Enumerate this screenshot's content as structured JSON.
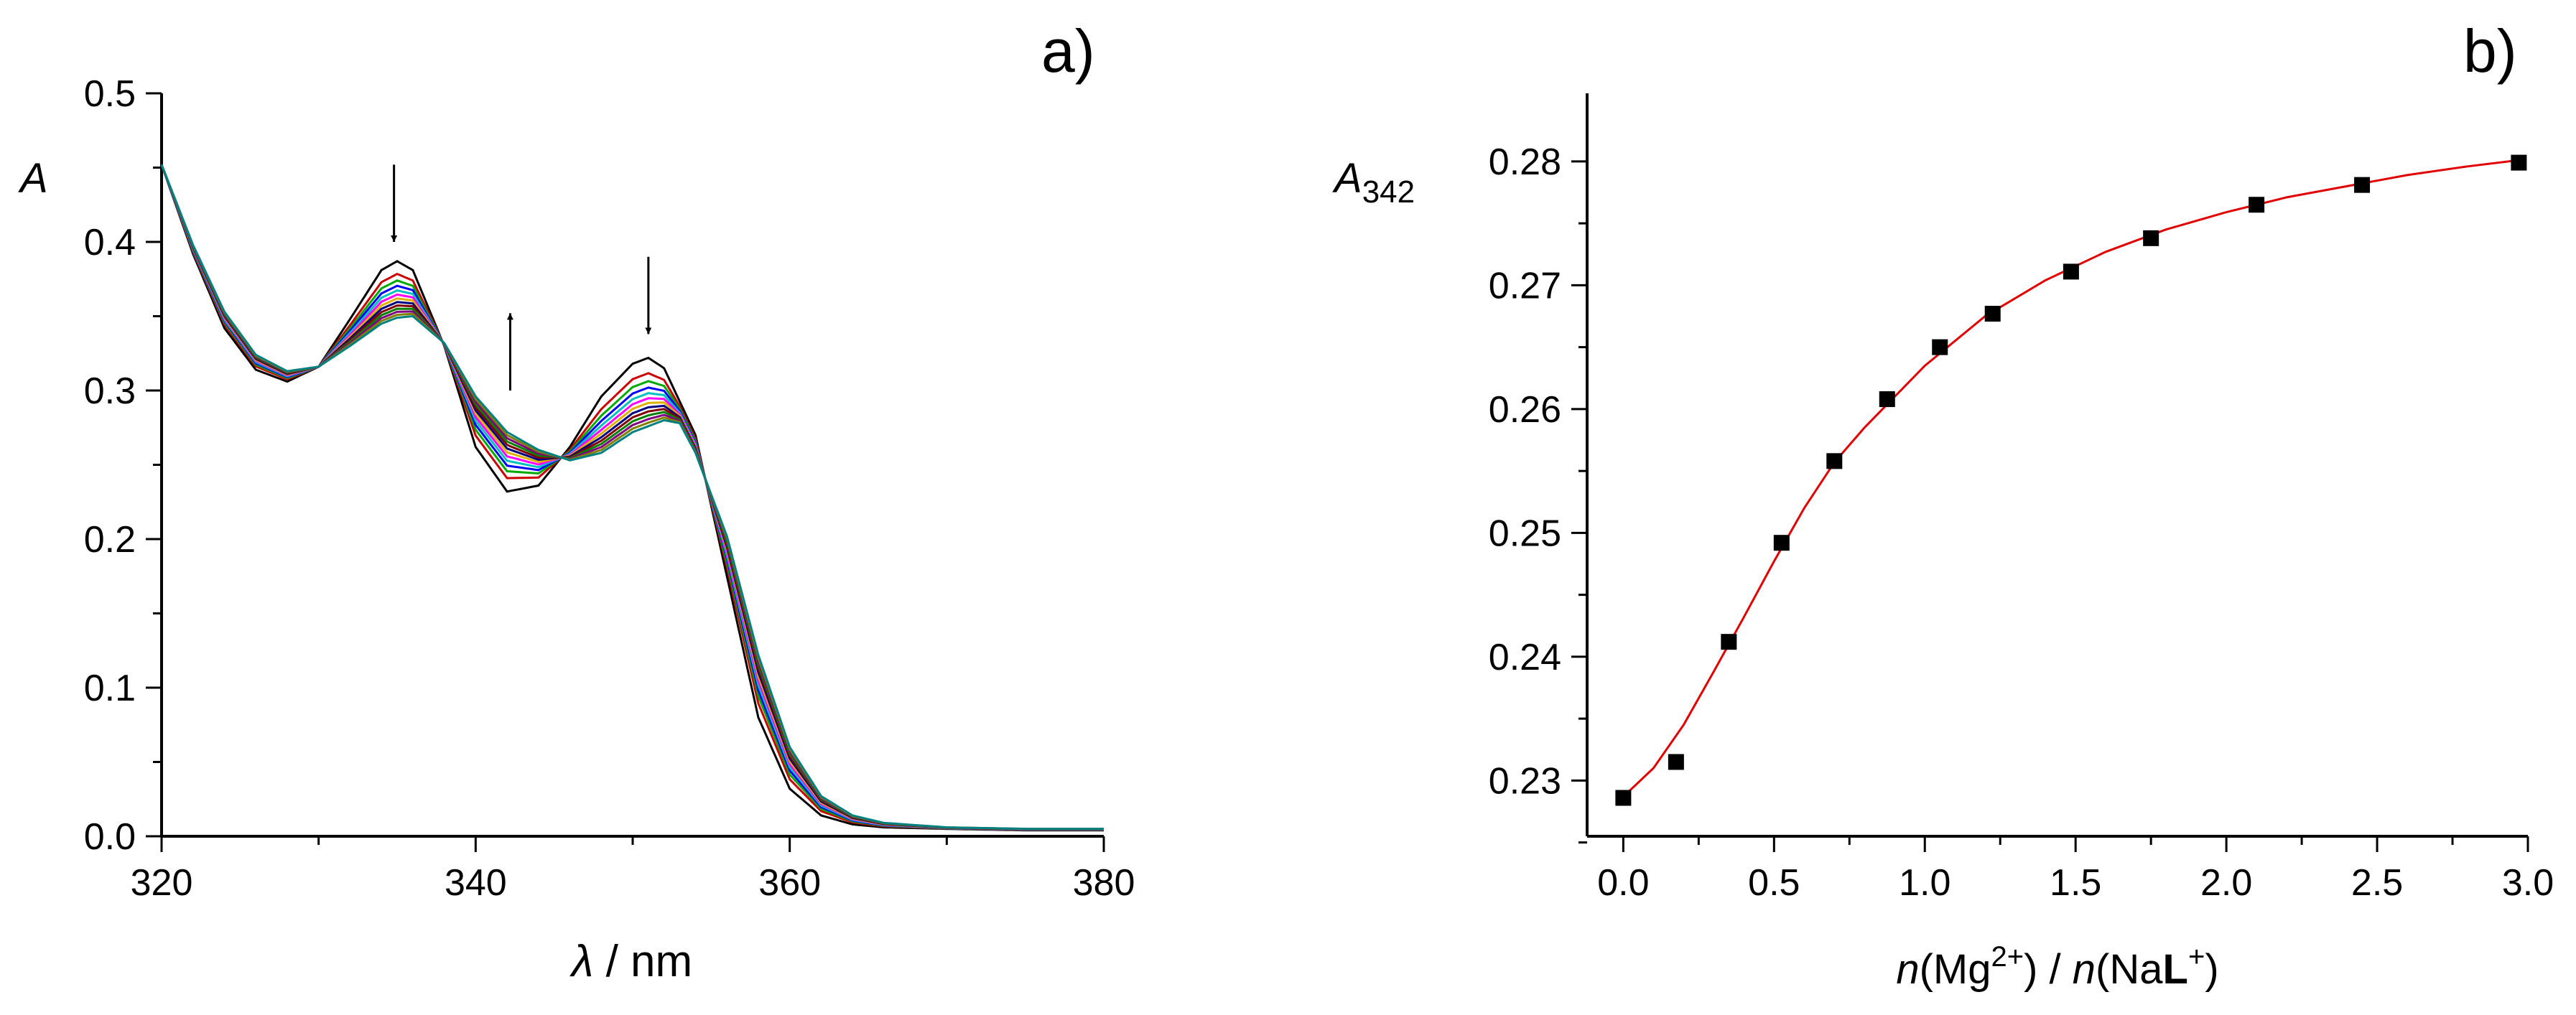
{
  "chart_data": [
    {
      "panel": "a)",
      "type": "line",
      "title": "",
      "xlabel_symbol": "λ",
      "xlabel_unit": " / nm",
      "ylabel": "A",
      "xlim": [
        320,
        380
      ],
      "ylim": [
        0,
        0.5
      ],
      "x_ticks": [
        320,
        340,
        360,
        380
      ],
      "y_ticks": [
        "0.0",
        "0.1",
        "0.2",
        "0.3",
        "0.4",
        "0.5"
      ],
      "legend": "none",
      "grid": false,
      "annotations": [
        {
          "type": "arrow",
          "direction": "down",
          "x": 334.8,
          "y_from": 0.452,
          "y_to": 0.4
        },
        {
          "type": "arrow",
          "direction": "up",
          "x": 342.2,
          "y_from": 0.3,
          "y_to": 0.352
        },
        {
          "type": "arrow",
          "direction": "down",
          "x": 351.0,
          "y_from": 0.39,
          "y_to": 0.338
        }
      ],
      "initial_spectrum": {
        "x": [
          320,
          322,
          324,
          326,
          328,
          330,
          332,
          334,
          335,
          336,
          338,
          340,
          342,
          344,
          346,
          348,
          350,
          351,
          352,
          354,
          356,
          358,
          360,
          362,
          364,
          366,
          370,
          375,
          380
        ],
        "y": [
          0.452,
          0.392,
          0.342,
          0.314,
          0.306,
          0.316,
          0.348,
          0.381,
          0.387,
          0.381,
          0.33,
          0.262,
          0.232,
          0.236,
          0.262,
          0.296,
          0.318,
          0.322,
          0.315,
          0.27,
          0.175,
          0.08,
          0.032,
          0.014,
          0.008,
          0.006,
          0.005,
          0.004,
          0.004
        ]
      },
      "final_spectrum": {
        "x": [
          320,
          322,
          324,
          326,
          328,
          330,
          332,
          334,
          335,
          336,
          338,
          340,
          342,
          344,
          346,
          348,
          350,
          352,
          353,
          354,
          356,
          358,
          360,
          362,
          364,
          366,
          370,
          375,
          380
        ],
        "y": [
          0.452,
          0.398,
          0.353,
          0.324,
          0.313,
          0.316,
          0.33,
          0.345,
          0.349,
          0.35,
          0.332,
          0.296,
          0.272,
          0.26,
          0.253,
          0.258,
          0.272,
          0.28,
          0.278,
          0.258,
          0.202,
          0.122,
          0.06,
          0.027,
          0.014,
          0.009,
          0.006,
          0.005,
          0.005
        ]
      },
      "series_count": 13,
      "series_colors": [
        "#000000",
        "#cc0000",
        "#00aa00",
        "#0000ff",
        "#00c0c0",
        "#ff00ff",
        "#e0b000",
        "#000080",
        "#800000",
        "#008000",
        "#800080",
        "#808000",
        "#008080"
      ]
    },
    {
      "panel": "b)",
      "type": "scatter",
      "title": "",
      "xlabel": "n(Mg2+) / n(NaL+)",
      "ylabel": "A342",
      "xlim": [
        -0.12,
        3.0
      ],
      "ylim": [
        0.2255,
        0.2855
      ],
      "x_ticks": [
        "0.0",
        "0.5",
        "1.0",
        "1.5",
        "2.0",
        "2.5",
        "3.0"
      ],
      "y_ticks": [
        "0.23",
        "0.24",
        "0.25",
        "0.26",
        "0.27",
        "0.28"
      ],
      "legend": "none",
      "grid": false,
      "points": {
        "x": [
          0.0,
          0.175,
          0.35,
          0.525,
          0.7,
          0.875,
          1.05,
          1.225,
          1.485,
          1.75,
          2.1,
          2.45,
          2.97
        ],
        "y": [
          0.2286,
          0.2315,
          0.2412,
          0.2492,
          0.2558,
          0.2608,
          0.265,
          0.2677,
          0.2711,
          0.2738,
          0.2765,
          0.2781,
          0.2799
        ]
      },
      "fit": {
        "color": "#e00000",
        "x": [
          0.0,
          0.1,
          0.2,
          0.3,
          0.4,
          0.5,
          0.6,
          0.7,
          0.8,
          0.9,
          1.0,
          1.2,
          1.4,
          1.6,
          1.8,
          2.0,
          2.2,
          2.4,
          2.6,
          2.8,
          2.97
        ],
        "y": [
          0.2287,
          0.231,
          0.2345,
          0.2388,
          0.2432,
          0.2477,
          0.252,
          0.2557,
          0.2585,
          0.261,
          0.2635,
          0.2675,
          0.2704,
          0.2727,
          0.2745,
          0.2759,
          0.2771,
          0.278,
          0.2789,
          0.2796,
          0.2801
        ]
      }
    }
  ]
}
